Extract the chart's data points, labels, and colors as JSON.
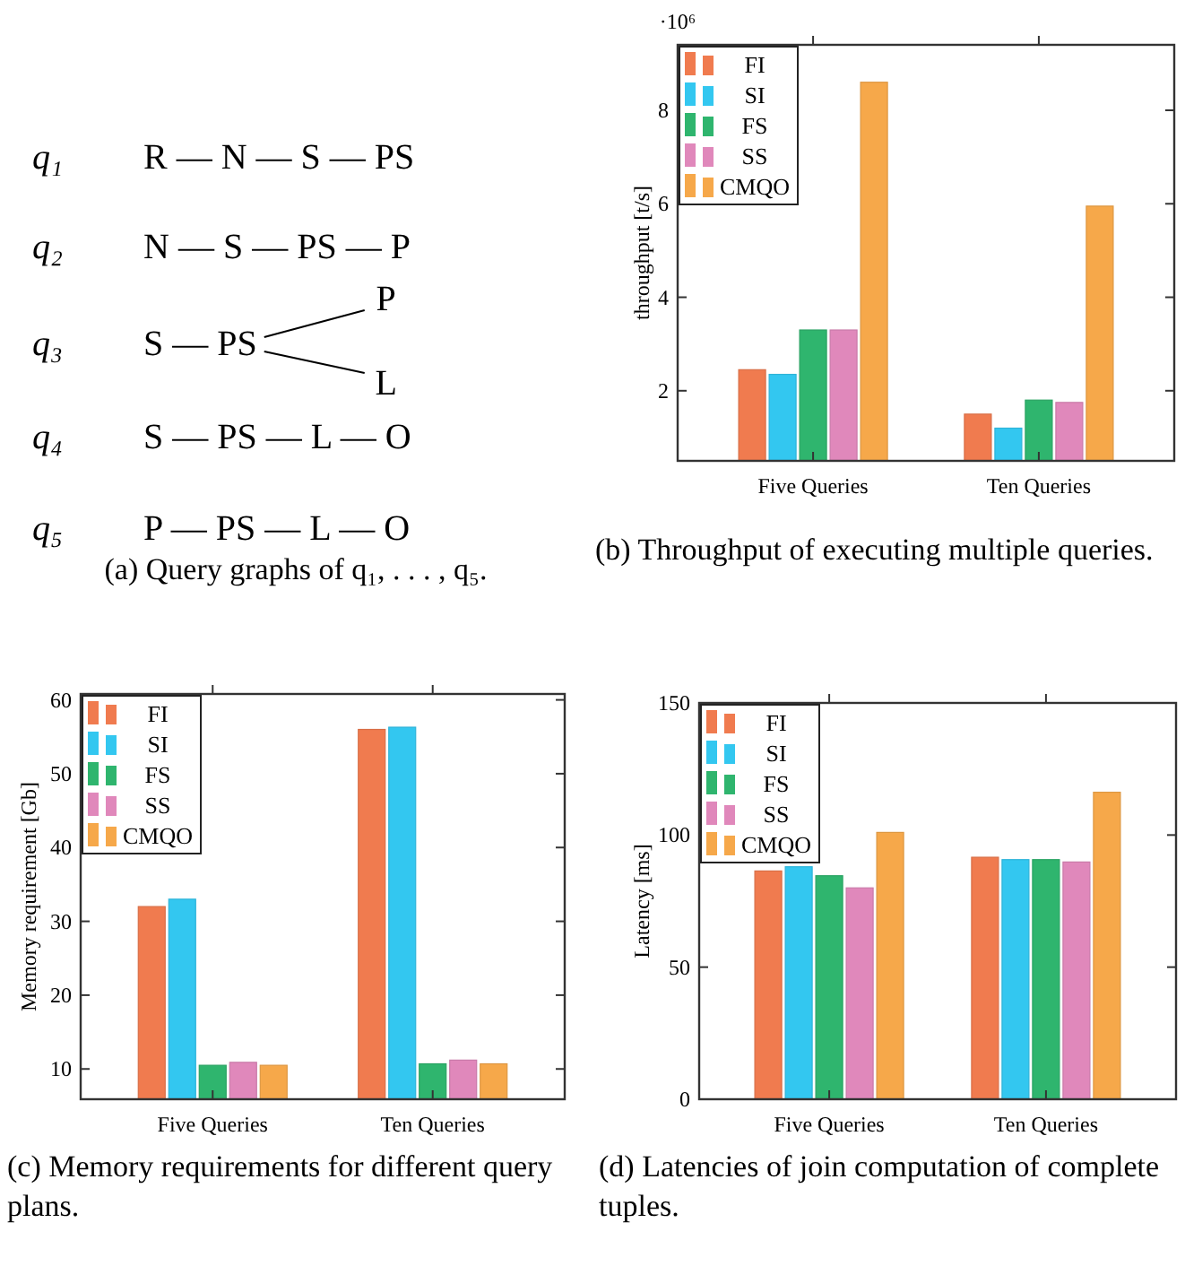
{
  "chart_data": [
    {
      "type": "other",
      "title": "(a) Query graphs of q₁, . . . , q₅.",
      "categories": [
        "q₁",
        "q₂",
        "q₃",
        "q₄",
        "q₅"
      ],
      "annotations": [
        "R — N — S — PS",
        "N — S — PS — P",
        "S — PS",
        "P",
        "L",
        "S — PS — L — O",
        "P — PS — L — O"
      ]
    },
    {
      "type": "bar",
      "title": "(b) Throughput of executing multiple queries.",
      "ylabel": "throughput [t/s]",
      "categories": [
        "Five Queries",
        "Ten Queries"
      ],
      "ylim": [
        0.5,
        9.4
      ],
      "yticks": [
        2,
        4,
        6,
        8
      ],
      "legend": "top left",
      "annotations": [
        "·10⁶"
      ],
      "series": [
        {
          "name": "FI",
          "color": "#f07b4f",
          "values": [
            2.45,
            1.5
          ]
        },
        {
          "name": "SI",
          "color": "#33c7f0",
          "values": [
            2.35,
            1.2
          ]
        },
        {
          "name": "FS",
          "color": "#2fb56e",
          "values": [
            3.3,
            1.8
          ]
        },
        {
          "name": "SS",
          "color": "#e088bb",
          "values": [
            3.3,
            1.75
          ]
        },
        {
          "name": "CMQO",
          "color": "#f6a84a",
          "values": [
            8.6,
            5.95
          ]
        }
      ]
    },
    {
      "type": "bar",
      "title": "(c) Memory requirements for different query plans.",
      "ylabel": "Memory requirement [Gb]",
      "categories": [
        "Five Queries",
        "Ten Queries"
      ],
      "ylim": [
        5.9,
        60.8
      ],
      "yticks": [
        10,
        20,
        30,
        40,
        50,
        60
      ],
      "legend": "top left",
      "series": [
        {
          "name": "FI",
          "color": "#f07b4f",
          "values": [
            32,
            56
          ]
        },
        {
          "name": "SI",
          "color": "#33c7f0",
          "values": [
            33,
            56.3
          ]
        },
        {
          "name": "FS",
          "color": "#2fb56e",
          "values": [
            10.5,
            10.7
          ]
        },
        {
          "name": "SS",
          "color": "#e088bb",
          "values": [
            10.9,
            11.2
          ]
        },
        {
          "name": "CMQO",
          "color": "#f6a84a",
          "values": [
            10.5,
            10.7
          ]
        }
      ]
    },
    {
      "type": "bar",
      "title": "(d) Latencies of join computation of complete tuples.",
      "ylabel": "Latency [ms]",
      "categories": [
        "Five Queries",
        "Ten Queries"
      ],
      "ylim": [
        0,
        150
      ],
      "yticks": [
        0,
        50,
        100,
        150
      ],
      "legend": "top left",
      "series": [
        {
          "name": "FI",
          "color": "#f07b4f",
          "values": [
            86.4,
            91.6
          ]
        },
        {
          "name": "SI",
          "color": "#33c7f0",
          "values": [
            88,
            90.7
          ]
        },
        {
          "name": "FS",
          "color": "#2fb56e",
          "values": [
            84.6,
            90.7
          ]
        },
        {
          "name": "SS",
          "color": "#e088bb",
          "values": [
            80,
            89.8
          ]
        },
        {
          "name": "CMQO",
          "color": "#f6a84a",
          "values": [
            101,
            116.2
          ]
        }
      ]
    }
  ]
}
